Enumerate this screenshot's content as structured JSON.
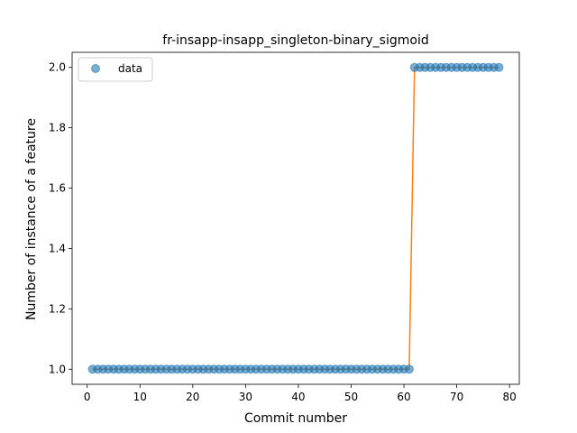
{
  "chart_data": {
    "type": "scatter",
    "title": "fr-insapp-insapp_singleton-binary_sigmoid",
    "xlabel": "Commit number",
    "ylabel": "Number of instance of a feature",
    "xlim": [
      -2.85,
      81.85
    ],
    "ylim": [
      0.95,
      2.05
    ],
    "xticks": [
      0,
      10,
      20,
      30,
      40,
      50,
      60,
      70,
      80
    ],
    "yticks": [
      1.0,
      1.2,
      1.4,
      1.6,
      1.8,
      2.0
    ],
    "xtick_labels": [
      "0",
      "10",
      "20",
      "30",
      "40",
      "50",
      "60",
      "70",
      "80"
    ],
    "ytick_labels": [
      "1.0",
      "1.2",
      "1.4",
      "1.6",
      "1.8",
      "2.0"
    ],
    "grid": false,
    "legend_position": "top-left",
    "series": [
      {
        "name": "data",
        "kind": "markers",
        "color": "#1f77b4",
        "x": [
          1,
          2,
          3,
          4,
          5,
          6,
          7,
          8,
          9,
          10,
          11,
          12,
          13,
          14,
          15,
          16,
          17,
          18,
          19,
          20,
          21,
          22,
          23,
          24,
          25,
          26,
          27,
          28,
          29,
          30,
          31,
          32,
          33,
          34,
          35,
          36,
          37,
          38,
          39,
          40,
          41,
          42,
          43,
          44,
          45,
          46,
          47,
          48,
          49,
          50,
          51,
          52,
          53,
          54,
          55,
          56,
          57,
          58,
          59,
          60,
          61,
          62,
          63,
          64,
          65,
          66,
          67,
          68,
          69,
          70,
          71,
          72,
          73,
          74,
          75,
          76,
          77,
          78
        ],
        "y": [
          1,
          1,
          1,
          1,
          1,
          1,
          1,
          1,
          1,
          1,
          1,
          1,
          1,
          1,
          1,
          1,
          1,
          1,
          1,
          1,
          1,
          1,
          1,
          1,
          1,
          1,
          1,
          1,
          1,
          1,
          1,
          1,
          1,
          1,
          1,
          1,
          1,
          1,
          1,
          1,
          1,
          1,
          1,
          1,
          1,
          1,
          1,
          1,
          1,
          1,
          1,
          1,
          1,
          1,
          1,
          1,
          1,
          1,
          1,
          1,
          1,
          2,
          2,
          2,
          2,
          2,
          2,
          2,
          2,
          2,
          2,
          2,
          2,
          2,
          2,
          2,
          2,
          2
        ]
      },
      {
        "kind": "line",
        "color": "#ff7f0e",
        "x": [
          1,
          61,
          62,
          78
        ],
        "y": [
          1,
          1,
          2,
          2
        ]
      }
    ]
  }
}
